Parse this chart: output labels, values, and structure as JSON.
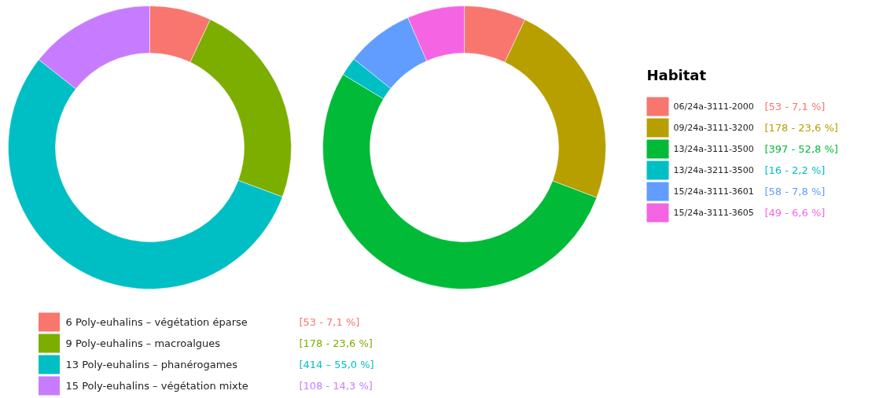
{
  "chart_data": [
    {
      "type": "donut",
      "categories": [
        "6 Poly-euhalins – végétation éparse",
        "9 Poly-euhalins – macroalgues",
        "13 Poly-euhalins – phanérogames",
        "15 Poly-euhalins – végétation mixte"
      ],
      "values": [
        53,
        178,
        414,
        108
      ],
      "colors": [
        "#f8766d",
        "#7cae00",
        "#00bfc4",
        "#c77cff"
      ],
      "value_labels": [
        "[53 - 7,1 %]",
        "[178 - 23,6 %]",
        "[414 – 55,0 %]",
        "[108 -  14,3 %]"
      ],
      "legend": "bottom left"
    },
    {
      "type": "donut",
      "legend_title": "Habitat",
      "categories": [
        "06/24a-3111-2000",
        "09/24a-3111-3200",
        "13/24a-3111-3500",
        "13/24a-3211-3500",
        "15/24a-3111-3601",
        "15/24a-3111-3605"
      ],
      "values": [
        53,
        178,
        397,
        16,
        58,
        49
      ],
      "colors": [
        "#f8766d",
        "#b79f00",
        "#00ba38",
        "#00bfc4",
        "#619cff",
        "#f564e3"
      ],
      "value_labels": [
        "[53 - 7,1 %]",
        "[178 - 23,6 %]",
        "[397 - 52,8 %]",
        "[16 - 2,2 %]",
        "[58 - 7,8 %]",
        "[49 -  6,6 %]"
      ],
      "legend": "right"
    }
  ]
}
